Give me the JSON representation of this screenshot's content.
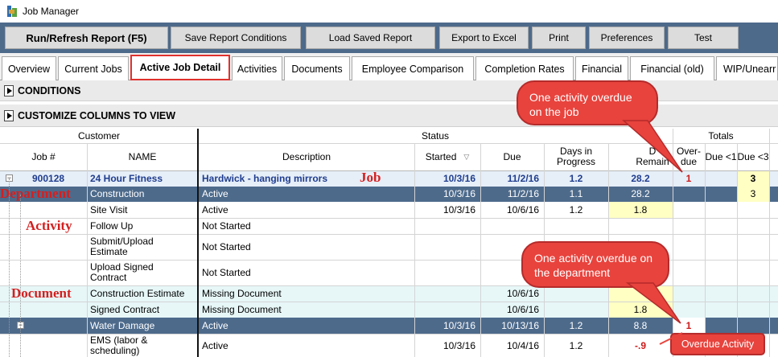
{
  "window": {
    "title": "Job Manager",
    "icon": "job-manager-app-icon"
  },
  "toolbar": {
    "buttons": [
      {
        "label": "Run/Refresh Report (F5)"
      },
      {
        "label": "Save Report Conditions"
      },
      {
        "label": "Load Saved Report"
      },
      {
        "label": "Export to Excel"
      },
      {
        "label": "Print"
      },
      {
        "label": "Preferences"
      },
      {
        "label": "Test"
      }
    ]
  },
  "tabs": [
    "Overview",
    "Current Jobs",
    "Active Job Detail",
    "Activities",
    "Documents",
    "Employee Comparison",
    "Completion Rates",
    "Financial",
    "Financial (old)",
    "WIP/Unearr"
  ],
  "active_tab": "Active Job Detail",
  "sections": {
    "conditions": "CONDITIONS",
    "customize": "CUSTOMIZE COLUMNS TO VIEW"
  },
  "headers": {
    "customer": "Customer",
    "status": "Status",
    "totals": "Totals",
    "job_num": "Job #",
    "name": "NAME",
    "description": "Description",
    "started": "Started",
    "due": "Due",
    "days_in_progress": "Days in Progress",
    "days_remaining_partial": "D",
    "days_remaining_partial2": "Remain",
    "overdue": "Over-due",
    "due_lt1": "Due <1",
    "due_lt3": "Due <3"
  },
  "rows": [
    {
      "job": "900128",
      "name": "24 Hour Fitness",
      "desc": "Hardwick - hanging mirrors",
      "started": "10/3/16",
      "due": "11/2/16",
      "dip": "1.2",
      "drem": "28.2",
      "overdue": "1",
      "due3": "3"
    },
    {
      "name": "Construction",
      "desc": "Active",
      "started": "10/3/16",
      "due": "11/2/16",
      "dip": "1.1",
      "drem": "28.2",
      "due3": "3"
    },
    {
      "name": "Site Visit",
      "desc": "Active",
      "started": "10/3/16",
      "due": "10/6/16",
      "dip": "1.2",
      "drem": "1.8"
    },
    {
      "name": "Follow Up",
      "desc": "Not Started"
    },
    {
      "name": "Submit/Upload Estimate",
      "desc": "Not Started"
    },
    {
      "name": "Upload Signed Contract",
      "desc": "Not Started"
    },
    {
      "name": "Construction Estimate",
      "desc": "Missing Document",
      "due": "10/6/16"
    },
    {
      "name": "Signed Contract",
      "desc": "Missing Document",
      "due": "10/6/16",
      "drem": "1.8"
    },
    {
      "name": "Water Damage",
      "desc": "Active",
      "started": "10/3/16",
      "due": "10/13/16",
      "dip": "1.2",
      "drem": "8.8",
      "overdue": "1"
    },
    {
      "name": "EMS (labor & scheduling)",
      "desc": "Active",
      "started": "10/3/16",
      "due": "10/4/16",
      "dip": "1.2",
      "drem": "-.9"
    }
  ],
  "annotations": {
    "job": "Job",
    "department": "Department",
    "activity": "Activity",
    "document": "Document",
    "callout_job": "One activity overdue on the job",
    "callout_dept": "One activity overdue on the department",
    "overdue_activity": "Overdue Activity"
  },
  "colors": {
    "toolbar": "#4d6a8b",
    "dept_row": "#4d6a8b",
    "job_row": "#e6eef8",
    "doc_row": "#e7f7f8",
    "highlight": "#ffffc4",
    "annotation_red": "#e8433d",
    "job_text": "#1f3d8e"
  }
}
